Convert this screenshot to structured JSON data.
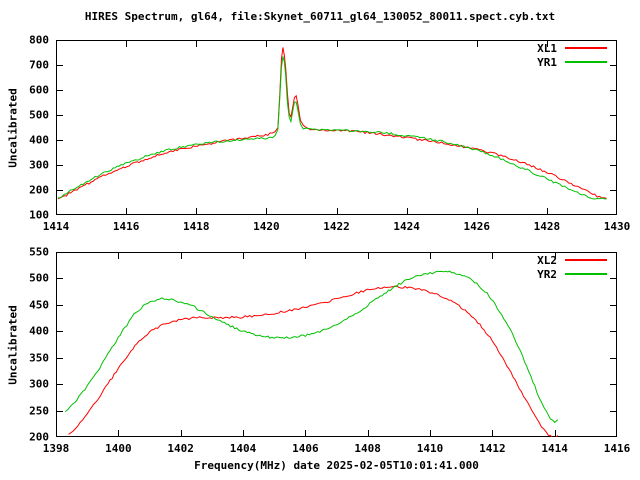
{
  "title": "HIRES Spectrum, gl64, file:Skynet_60711_gl64_130052_80011.spect.cyb.txt",
  "chart_data": [
    {
      "type": "line",
      "title": "",
      "xlabel": "",
      "ylabel": "Uncalibrated",
      "xlim": [
        1414,
        1430
      ],
      "ylim": [
        100,
        800
      ],
      "xticks": [
        1414,
        1416,
        1418,
        1420,
        1422,
        1424,
        1426,
        1428,
        1430
      ],
      "yticks": [
        100,
        200,
        300,
        400,
        500,
        600,
        700,
        800
      ],
      "grid": false,
      "legend_position": "top-right",
      "series": [
        {
          "name": "XL1",
          "color": "#ff0000",
          "points": [
            [
              1414.05,
              165
            ],
            [
              1414.3,
              180
            ],
            [
              1414.6,
              203
            ],
            [
              1415,
              232
            ],
            [
              1415.4,
              260
            ],
            [
              1415.8,
              284
            ],
            [
              1416.2,
              305
            ],
            [
              1416.6,
              326
            ],
            [
              1417,
              344
            ],
            [
              1417.4,
              358
            ],
            [
              1417.8,
              370
            ],
            [
              1418.2,
              381
            ],
            [
              1418.6,
              391
            ],
            [
              1419,
              400
            ],
            [
              1419.4,
              408
            ],
            [
              1419.8,
              416
            ],
            [
              1420.1,
              424
            ],
            [
              1420.25,
              432
            ],
            [
              1420.33,
              452
            ],
            [
              1420.38,
              580
            ],
            [
              1420.43,
              722
            ],
            [
              1420.47,
              772
            ],
            [
              1420.51,
              740
            ],
            [
              1420.55,
              690
            ],
            [
              1420.6,
              585
            ],
            [
              1420.65,
              505
            ],
            [
              1420.7,
              492
            ],
            [
              1420.75,
              530
            ],
            [
              1420.8,
              570
            ],
            [
              1420.85,
              577
            ],
            [
              1420.9,
              540
            ],
            [
              1420.97,
              480
            ],
            [
              1421.05,
              455
            ],
            [
              1421.2,
              444
            ],
            [
              1421.5,
              441
            ],
            [
              1422,
              438
            ],
            [
              1422.5,
              435
            ],
            [
              1423,
              428
            ],
            [
              1423.5,
              419
            ],
            [
              1424,
              409
            ],
            [
              1424.5,
              399
            ],
            [
              1425,
              389
            ],
            [
              1425.5,
              377
            ],
            [
              1426,
              362
            ],
            [
              1426.5,
              345
            ],
            [
              1427,
              325
            ],
            [
              1427.5,
              300
            ],
            [
              1428,
              271
            ],
            [
              1428.5,
              238
            ],
            [
              1429,
              205
            ],
            [
              1429.3,
              184
            ],
            [
              1429.5,
              172
            ],
            [
              1429.7,
              167
            ]
          ]
        },
        {
          "name": "YR1",
          "color": "#00c000",
          "points": [
            [
              1414.05,
              168
            ],
            [
              1414.3,
              186
            ],
            [
              1414.6,
              212
            ],
            [
              1415,
              243
            ],
            [
              1415.4,
              271
            ],
            [
              1415.8,
              295
            ],
            [
              1416.2,
              316
            ],
            [
              1416.6,
              336
            ],
            [
              1417,
              353
            ],
            [
              1417.4,
              366
            ],
            [
              1417.8,
              377
            ],
            [
              1418.2,
              386
            ],
            [
              1418.6,
              393
            ],
            [
              1419,
              398
            ],
            [
              1419.4,
              402
            ],
            [
              1419.8,
              405
            ],
            [
              1420.1,
              408
            ],
            [
              1420.25,
              418
            ],
            [
              1420.33,
              440
            ],
            [
              1420.38,
              560
            ],
            [
              1420.43,
              690
            ],
            [
              1420.47,
              737
            ],
            [
              1420.51,
              710
            ],
            [
              1420.55,
              655
            ],
            [
              1420.6,
              550
            ],
            [
              1420.65,
              490
            ],
            [
              1420.7,
              478
            ],
            [
              1420.75,
              512
            ],
            [
              1420.8,
              548
            ],
            [
              1420.85,
              555
            ],
            [
              1420.9,
              520
            ],
            [
              1420.97,
              468
            ],
            [
              1421.05,
              448
            ],
            [
              1421.2,
              442
            ],
            [
              1421.5,
              440
            ],
            [
              1422,
              439
            ],
            [
              1422.5,
              437
            ],
            [
              1423,
              432
            ],
            [
              1423.5,
              426
            ],
            [
              1424,
              417
            ],
            [
              1424.5,
              407
            ],
            [
              1425,
              395
            ],
            [
              1425.5,
              380
            ],
            [
              1426,
              360
            ],
            [
              1426.5,
              335
            ],
            [
              1427,
              306
            ],
            [
              1427.5,
              276
            ],
            [
              1428,
              244
            ],
            [
              1428.5,
              212
            ],
            [
              1429,
              183
            ],
            [
              1429.3,
              169
            ],
            [
              1429.5,
              164
            ],
            [
              1429.7,
              164
            ]
          ]
        }
      ]
    },
    {
      "type": "line",
      "title": "",
      "xlabel": "Frequency(MHz) date 2025-02-05T10:01:41.000",
      "ylabel": "Uncalibrated",
      "xlim": [
        1398,
        1416
      ],
      "ylim": [
        200,
        550
      ],
      "xticks": [
        1398,
        1400,
        1402,
        1404,
        1406,
        1408,
        1410,
        1412,
        1414,
        1416
      ],
      "yticks": [
        200,
        250,
        300,
        350,
        400,
        450,
        500,
        550
      ],
      "grid": false,
      "legend_position": "top-right",
      "series": [
        {
          "name": "XL2",
          "color": "#ff0000",
          "points": [
            [
              1398.4,
              205
            ],
            [
              1398.7,
              221
            ],
            [
              1399,
              243
            ],
            [
              1399.4,
              277
            ],
            [
              1399.8,
              312
            ],
            [
              1400.2,
              347
            ],
            [
              1400.6,
              377
            ],
            [
              1401,
              399
            ],
            [
              1401.4,
              412
            ],
            [
              1401.8,
              420
            ],
            [
              1402.2,
              424
            ],
            [
              1402.6,
              426
            ],
            [
              1403,
              426
            ],
            [
              1403.5,
              426
            ],
            [
              1404,
              427
            ],
            [
              1404.5,
              430
            ],
            [
              1405,
              434
            ],
            [
              1405.5,
              439
            ],
            [
              1406,
              445
            ],
            [
              1406.5,
              452
            ],
            [
              1407,
              461
            ],
            [
              1407.5,
              470
            ],
            [
              1408,
              478
            ],
            [
              1408.4,
              483
            ],
            [
              1408.8,
              485
            ],
            [
              1409.2,
              483
            ],
            [
              1409.6,
              480
            ],
            [
              1410,
              474
            ],
            [
              1410.4,
              465
            ],
            [
              1410.8,
              453
            ],
            [
              1411.2,
              436
            ],
            [
              1411.6,
              413
            ],
            [
              1412,
              382
            ],
            [
              1412.4,
              343
            ],
            [
              1412.8,
              300
            ],
            [
              1413.2,
              257
            ],
            [
              1413.5,
              227
            ],
            [
              1413.8,
              203
            ],
            [
              1414,
              197
            ],
            [
              1414.1,
              203
            ]
          ]
        },
        {
          "name": "YR2",
          "color": "#00c000",
          "points": [
            [
              1398.3,
              248
            ],
            [
              1398.6,
              266
            ],
            [
              1399,
              296
            ],
            [
              1399.4,
              331
            ],
            [
              1399.8,
              369
            ],
            [
              1400.2,
              406
            ],
            [
              1400.5,
              431
            ],
            [
              1400.8,
              448
            ],
            [
              1401.1,
              458
            ],
            [
              1401.4,
              462
            ],
            [
              1401.7,
              460
            ],
            [
              1402,
              455
            ],
            [
              1402.4,
              447
            ],
            [
              1402.8,
              434
            ],
            [
              1403.2,
              421
            ],
            [
              1403.6,
              410
            ],
            [
              1404,
              400
            ],
            [
              1404.4,
              393
            ],
            [
              1404.8,
              389
            ],
            [
              1405.2,
              388
            ],
            [
              1405.6,
              389
            ],
            [
              1406,
              392
            ],
            [
              1406.4,
              398
            ],
            [
              1406.8,
              406
            ],
            [
              1407.2,
              418
            ],
            [
              1407.6,
              433
            ],
            [
              1408,
              449
            ],
            [
              1408.4,
              466
            ],
            [
              1408.8,
              482
            ],
            [
              1409.2,
              495
            ],
            [
              1409.6,
              504
            ],
            [
              1410,
              510
            ],
            [
              1410.3,
              513
            ],
            [
              1410.7,
              512
            ],
            [
              1411.1,
              505
            ],
            [
              1411.5,
              491
            ],
            [
              1411.9,
              467
            ],
            [
              1412.3,
              432
            ],
            [
              1412.7,
              388
            ],
            [
              1413.1,
              335
            ],
            [
              1413.5,
              275
            ],
            [
              1413.8,
              240
            ],
            [
              1414,
              226
            ],
            [
              1414.1,
              233
            ]
          ]
        }
      ]
    }
  ]
}
